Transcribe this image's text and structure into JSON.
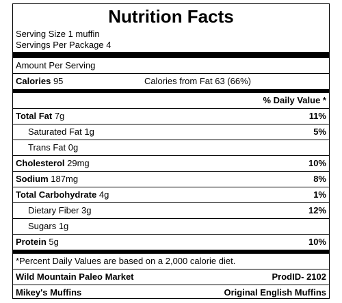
{
  "title": "Nutrition Facts",
  "serving": [
    "Serving Size 1 muffin",
    "Servings Per Package 4"
  ],
  "amount_per_serving": "Amount Per Serving",
  "calories": {
    "label": "Calories",
    "value": "95",
    "from_fat": "Calories from Fat 63 (66%)"
  },
  "daily_value_header": "% Daily Value *",
  "nutrients": [
    {
      "name": "Total Fat",
      "amount": "7g",
      "dv": "11%"
    },
    {
      "name": "Saturated Fat",
      "amount": "1g",
      "dv": "5%"
    },
    {
      "name": "Trans Fat",
      "amount": "0g",
      "dv": null
    },
    {
      "name": "Cholesterol",
      "amount": "29mg",
      "dv": "10%"
    },
    {
      "name": "Sodium",
      "amount": "187mg",
      "dv": "8%"
    },
    {
      "name": "Total Carbohydrate",
      "amount": "4g",
      "dv": "1%"
    },
    {
      "name": "Dietary Fiber",
      "amount": "3g",
      "dv": "12%"
    },
    {
      "name": "Sugars",
      "amount": "1g",
      "dv": null
    },
    {
      "name": "Protein",
      "amount": "5g",
      "dv": "10%"
    }
  ],
  "footnote": "*Percent Daily Values are based on a 2,000 calorie diet.",
  "footer": [
    {
      "left": "Wild Mountain Paleo Market",
      "right": "ProdID- 2102"
    },
    {
      "left": "Mikey's Muffins",
      "right": "Original English Muffins"
    }
  ]
}
